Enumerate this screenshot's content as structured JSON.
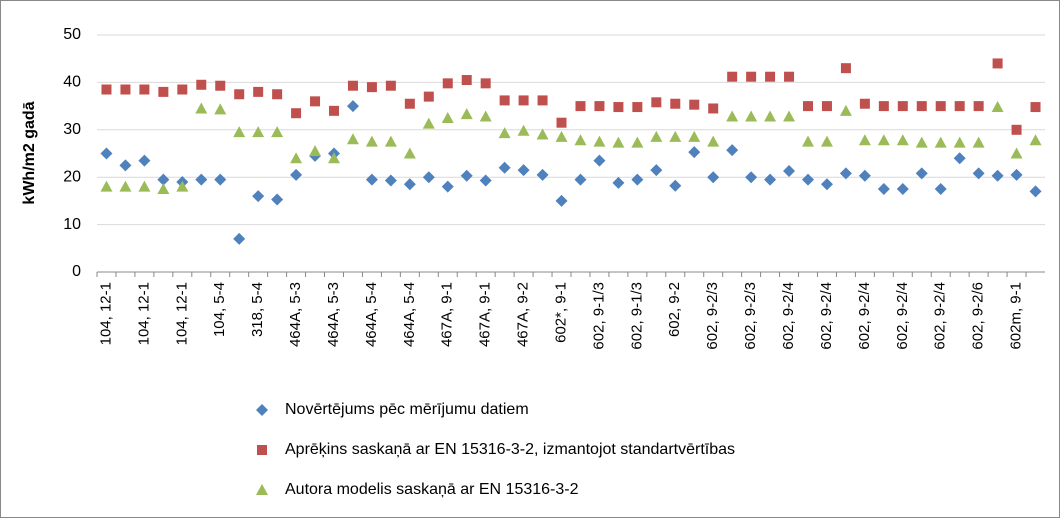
{
  "chart_data": {
    "type": "scatter",
    "y_label": "kWh/m2 gadā",
    "categories": [
      "104, 12-1",
      null,
      "104, 12-1",
      null,
      "104, 12-1",
      null,
      "104, 5-4",
      null,
      "318, 5-4",
      null,
      "464A, 5-3",
      null,
      "464A, 5-3",
      null,
      "464A, 5-4",
      null,
      "464A, 5-4",
      null,
      "467A, 9-1",
      null,
      "467A, 9-1",
      null,
      "467A, 9-2",
      null,
      "602*, 9-1",
      null,
      "602, 9-1/3",
      null,
      "602, 9-1/3",
      null,
      "602, 9-2",
      null,
      "602, 9-2/3",
      null,
      "602, 9-2/3",
      null,
      "602, 9-2/4",
      null,
      "602, 9-2/4",
      null,
      "602, 9-2/4",
      null,
      "602, 9-2/4",
      null,
      "602, 9-2/4",
      null,
      "602, 9-2/6",
      null,
      "602m, 9-1",
      null
    ],
    "series": [
      {
        "name": "Novērtējums pēc mērījumu datiem",
        "color": "#4f81bd",
        "marker": "diamond",
        "values": [
          25,
          22.5,
          23.5,
          19.5,
          19,
          19.5,
          19.5,
          7,
          16,
          15.3,
          20.5,
          24.5,
          25,
          35,
          19.5,
          19.3,
          18.5,
          20,
          18,
          20.3,
          19.3,
          22,
          21.5,
          20.5,
          15,
          19.5,
          23.5,
          18.8,
          19.5,
          21.5,
          18.2,
          25.3,
          20,
          25.7,
          20,
          19.5,
          21.3,
          19.5,
          18.5,
          20.8,
          20.3,
          17.5,
          17.5,
          20.8,
          17.5,
          24,
          20.8,
          20.3,
          20.5,
          17
        ]
      },
      {
        "name": "Aprēķins saskaņā ar EN 15316-3-2, izmantojot standartvērtības",
        "color": "#c0504d",
        "marker": "square",
        "values": [
          38.5,
          38.5,
          38.5,
          38,
          38.5,
          39.5,
          39.3,
          37.5,
          38,
          37.5,
          33.5,
          36,
          34,
          39.3,
          39,
          39.3,
          35.5,
          37,
          39.8,
          40.5,
          39.8,
          36.2,
          36.2,
          36.2,
          31.5,
          35,
          35,
          34.8,
          34.8,
          35.8,
          35.5,
          35.3,
          34.5,
          41.2,
          41.2,
          41.2,
          41.2,
          35,
          35,
          43,
          35.5,
          35,
          35,
          35,
          35,
          35,
          35,
          44,
          30,
          34.8
        ]
      },
      {
        "name": "Autora modelis saskaņā ar EN 15316-3-2",
        "color": "#9bbb59",
        "marker": "triangle",
        "values": [
          18,
          18,
          18,
          17.5,
          18,
          34.5,
          34.3,
          29.5,
          29.5,
          29.5,
          24,
          25.5,
          24,
          28,
          27.5,
          27.5,
          25,
          31.3,
          32.5,
          33.3,
          32.8,
          29.3,
          29.8,
          29,
          28.5,
          27.8,
          27.5,
          27.3,
          27.3,
          28.5,
          28.5,
          28.5,
          27.5,
          32.8,
          32.8,
          32.8,
          32.8,
          27.5,
          27.5,
          34,
          27.8,
          27.8,
          27.8,
          27.3,
          27.3,
          27.3,
          27.3,
          34.8,
          25,
          27.8
        ]
      }
    ],
    "ylim": [
      0,
      50
    ],
    "yticks": [
      0,
      10,
      20,
      30,
      40,
      50
    ],
    "grid": true
  }
}
